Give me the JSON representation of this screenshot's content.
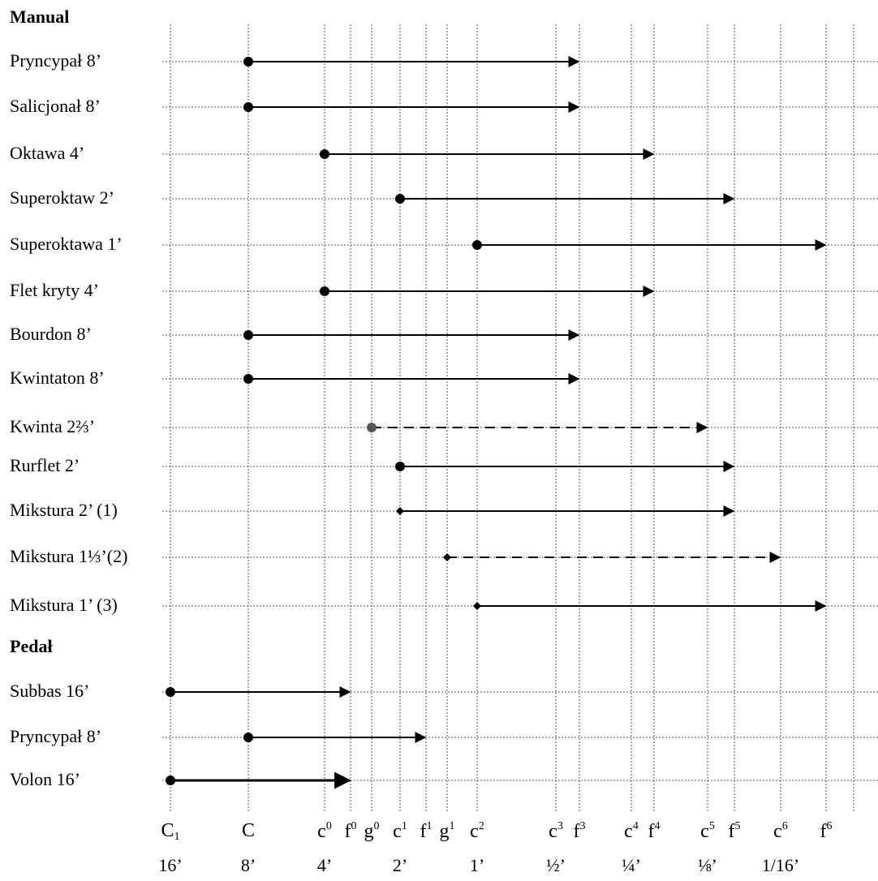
{
  "sections": {
    "manual": "Manual",
    "pedal": "Pedał"
  },
  "notes": [
    "C1",
    "C",
    "c0",
    "f0",
    "g0",
    "c1",
    "f1",
    "g1",
    "c2",
    "c3",
    "f3",
    "c4",
    "f4",
    "c5",
    "f5",
    "c6",
    "f6"
  ],
  "note_labels": [
    {
      "base": "C",
      "sub": "1",
      "sup": ""
    },
    {
      "base": "C",
      "sub": "",
      "sup": ""
    },
    {
      "base": "c",
      "sub": "",
      "sup": "0"
    },
    {
      "base": "f",
      "sub": "",
      "sup": "0"
    },
    {
      "base": "g",
      "sub": "",
      "sup": "0"
    },
    {
      "base": "c",
      "sub": "",
      "sup": "1"
    },
    {
      "base": "f",
      "sub": "",
      "sup": "1"
    },
    {
      "base": "g",
      "sub": "",
      "sup": "1"
    },
    {
      "base": "c",
      "sub": "",
      "sup": "2"
    },
    {
      "base": "c",
      "sub": "",
      "sup": "3"
    },
    {
      "base": "f",
      "sub": "",
      "sup": "3"
    },
    {
      "base": "c",
      "sub": "",
      "sup": "4"
    },
    {
      "base": "f",
      "sub": "",
      "sup": "4"
    },
    {
      "base": "c",
      "sub": "",
      "sup": "5"
    },
    {
      "base": "f",
      "sub": "",
      "sup": "5"
    },
    {
      "base": "c",
      "sub": "",
      "sup": "6"
    },
    {
      "base": "f",
      "sub": "",
      "sup": "6"
    }
  ],
  "footages": [
    {
      "note": "C1",
      "label": "16’"
    },
    {
      "note": "C",
      "label": "8’"
    },
    {
      "note": "c0",
      "label": "4’"
    },
    {
      "note": "c1",
      "label": "2’"
    },
    {
      "note": "c2",
      "label": "1’"
    },
    {
      "note": "c3",
      "label": "½’"
    },
    {
      "note": "c4",
      "label": "¼’"
    },
    {
      "note": "c5",
      "label": "⅛’"
    },
    {
      "note": "c6",
      "label": "1/16’"
    }
  ],
  "manual_stops": [
    {
      "name": "Pryncypał 8’",
      "from": "C",
      "to": "f3",
      "style": "solid",
      "marker": "dot"
    },
    {
      "name": "Salicjonał 8’",
      "from": "C",
      "to": "f3",
      "style": "solid",
      "marker": "dot"
    },
    {
      "name": "Oktawa 4’",
      "from": "c0",
      "to": "f4",
      "style": "solid",
      "marker": "dot"
    },
    {
      "name": "Superoktaw 2’",
      "from": "c1",
      "to": "f5",
      "style": "solid",
      "marker": "dot"
    },
    {
      "name": "Superoktawa 1’",
      "from": "c2",
      "to": "f6",
      "style": "solid",
      "marker": "dot"
    },
    {
      "name": "Flet kryty 4’",
      "from": "c0",
      "to": "f4",
      "style": "solid",
      "marker": "dot"
    },
    {
      "name": "Bourdon 8’",
      "from": "C",
      "to": "f3",
      "style": "solid",
      "marker": "dot"
    },
    {
      "name": "Kwintaton 8’",
      "from": "C",
      "to": "f3",
      "style": "solid",
      "marker": "dot"
    },
    {
      "name": "Kwinta 2⅔’",
      "from": "g0",
      "to": "c5",
      "style": "dashed",
      "marker": "dot-grey"
    },
    {
      "name": "Rurflet 2’",
      "from": "c1",
      "to": "f5",
      "style": "solid",
      "marker": "dot"
    },
    {
      "name": "Mikstura 2’ (1)",
      "from": "c1",
      "to": "f5",
      "style": "solid",
      "marker": "diamond"
    },
    {
      "name": "Mikstura 1⅓’(2)",
      "from": "g1",
      "to": "c6",
      "style": "dashed",
      "marker": "diamond"
    },
    {
      "name": "Mikstura 1’ (3)",
      "from": "c2",
      "to": "f6",
      "style": "solid",
      "marker": "diamond"
    }
  ],
  "pedal_stops": [
    {
      "name": "Subbas 16’",
      "from": "C1",
      "to": "f0",
      "style": "solid",
      "marker": "dot"
    },
    {
      "name": "Pryncypał 8’",
      "from": "C",
      "to": "f1",
      "style": "solid",
      "marker": "dot"
    },
    {
      "name": "Volon 16’",
      "from": "C1",
      "to": "f0",
      "style": "solid-thick",
      "marker": "dot"
    }
  ]
}
